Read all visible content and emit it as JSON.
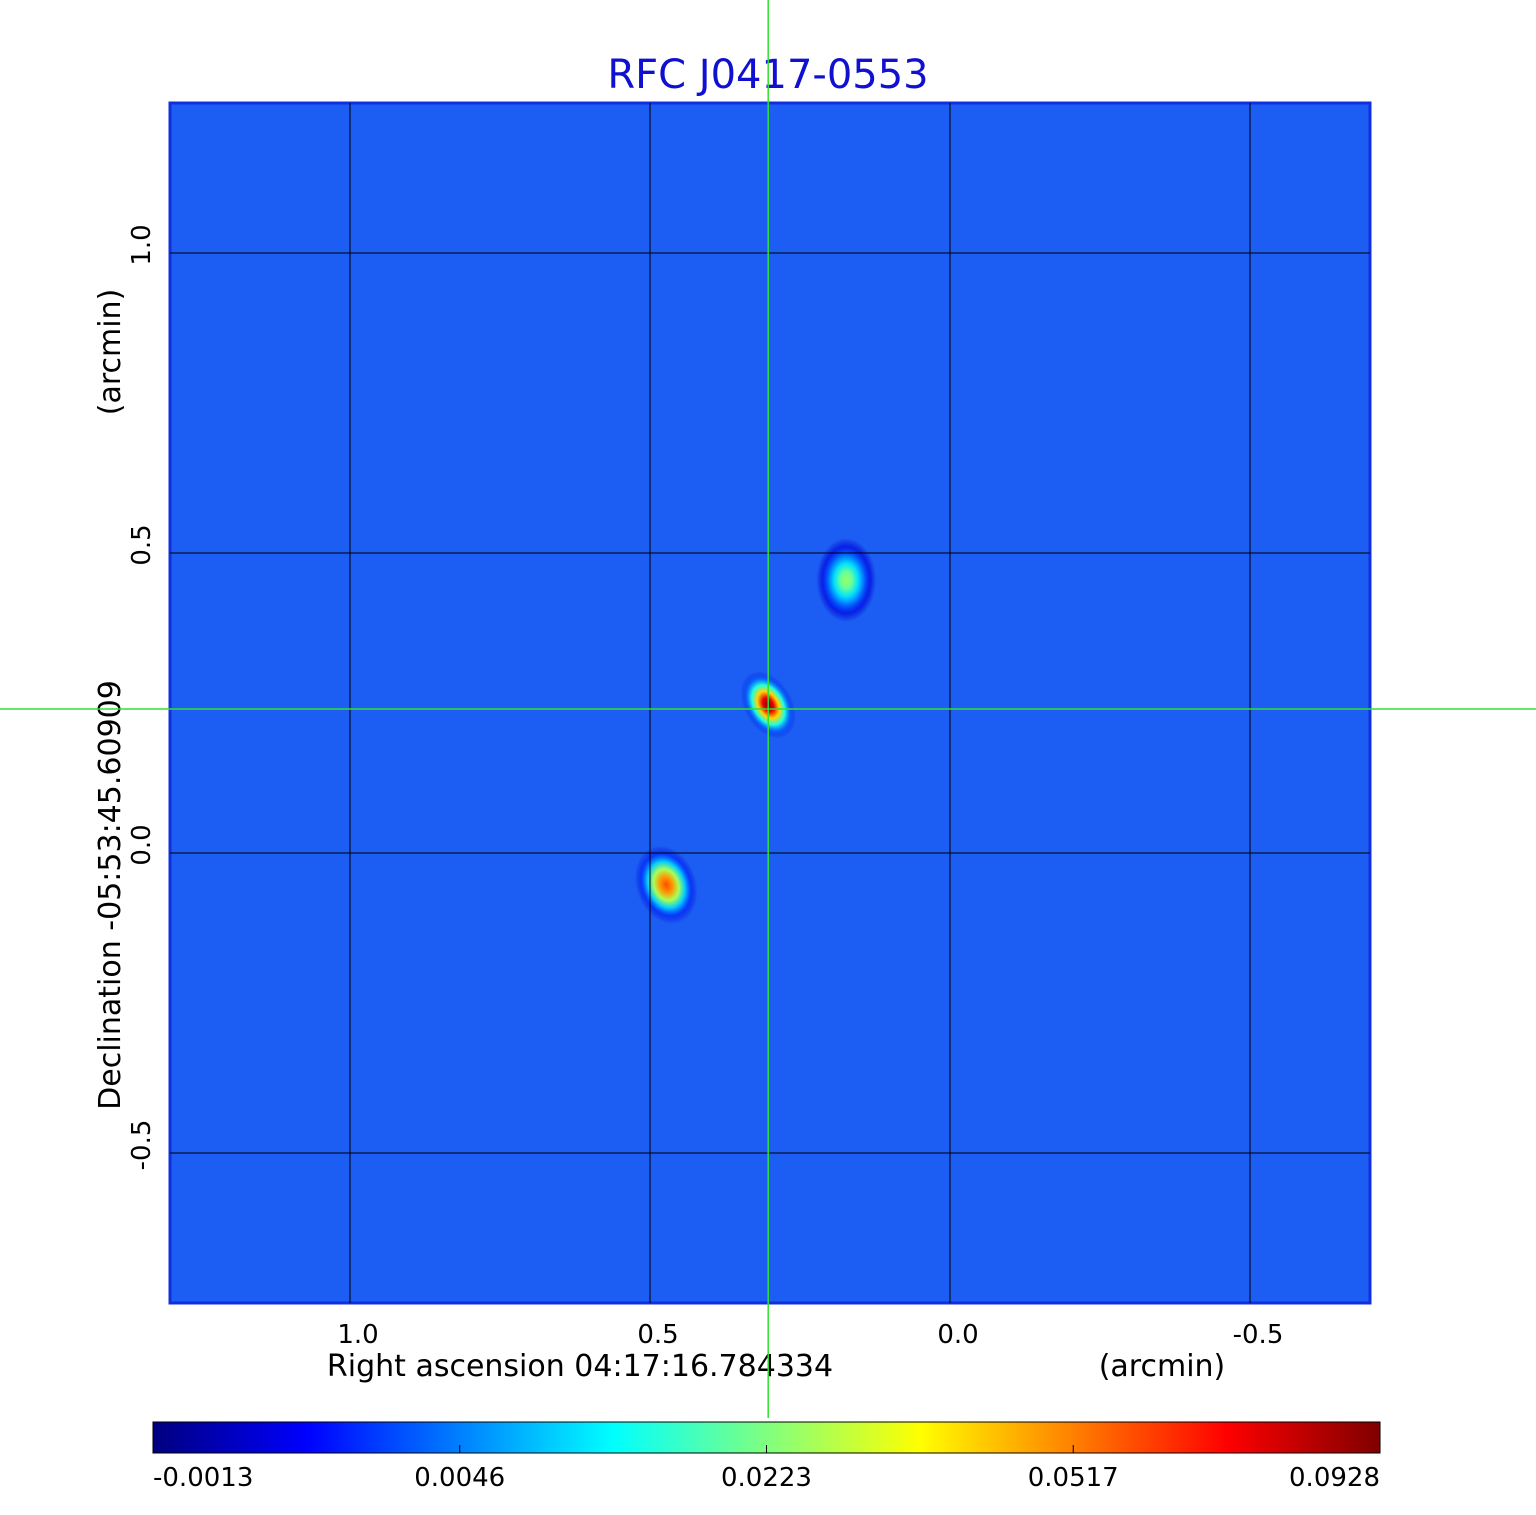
{
  "chart_data": {
    "type": "image",
    "title": "RFC J0417-0553",
    "xlabel": "Right ascension  04:17:16.784334",
    "xunit": "(arcmin)",
    "ylabel": "Declination  -05:53:45.60909",
    "yunit": "(arcmin)",
    "xlim": [
      1.3,
      -0.7
    ],
    "ylim": [
      -0.75,
      1.25
    ],
    "xticks": [
      {
        "value": 1,
        "label": "1.0"
      },
      0.5,
      {
        "value": 0,
        "label": "0.0"
      },
      -0.5
    ],
    "yticks": [
      {
        "value": 1,
        "label": "1.0"
      },
      0.5,
      {
        "value": 0,
        "label": "0.0"
      },
      -0.5
    ],
    "grid": true,
    "background_color": "#1c5df4",
    "reference": {
      "x": 0.303,
      "y": 0.24
    },
    "sources": [
      {
        "x": 0.303,
        "y": 0.247,
        "value": 0.0928
      },
      {
        "x": 0.173,
        "y": 0.455,
        "value": 0.025
      },
      {
        "x": 0.473,
        "y": -0.053,
        "value": 0.06
      }
    ],
    "colorbar_ticks": [
      -0.0013,
      0.0046,
      0.0223,
      0.0517,
      0.0928
    ]
  }
}
